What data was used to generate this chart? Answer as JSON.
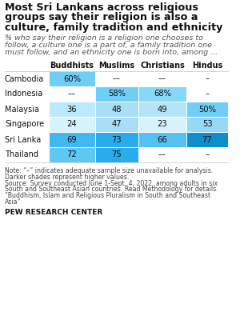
{
  "title_lines": [
    "Most Sri Lankans across religious",
    "groups say their religion is also a",
    "culture, family tradition and ethnicity"
  ],
  "subtitle_lines": [
    "% who say their religion is a religion one chooses to",
    "follow, a culture one is a part of, a family tradition one",
    "must follow, ​and​ an ethnicity one is born into, among ..."
  ],
  "columns": [
    "Buddhists",
    "Muslims",
    "Christians",
    "Hindus"
  ],
  "rows": [
    "Cambodia",
    "Indonesia",
    "Malaysia",
    "Singapore",
    "Sri Lanka",
    "Thailand"
  ],
  "data": [
    [
      "60%",
      "––",
      "––",
      "–"
    ],
    [
      "––",
      "58%",
      "68%",
      "–"
    ],
    [
      "36",
      "48",
      "49",
      "50%"
    ],
    [
      "24",
      "47",
      "23",
      "53"
    ],
    [
      "69",
      "73",
      "66",
      "77"
    ],
    [
      "72",
      "75",
      "––",
      "–"
    ]
  ],
  "cell_colors": [
    [
      "#6ecef5",
      "#ffffff",
      "#ffffff",
      "#ffffff"
    ],
    [
      "#ffffff",
      "#6ecef5",
      "#85d8f8",
      "#ffffff"
    ],
    [
      "#bde9fc",
      "#a8dff7",
      "#b5e4f9",
      "#6ecef5"
    ],
    [
      "#d8f3fd",
      "#a8dff7",
      "#d8f3fd",
      "#96d8f6"
    ],
    [
      "#41b8ef",
      "#2aaceb",
      "#55c0f2",
      "#0d8fcb"
    ],
    [
      "#5ec8f3",
      "#2aaceb",
      "#ffffff",
      "#ffffff"
    ]
  ],
  "note_lines": [
    "Note: “–” indicates adequate sample size unavailable for analysis.",
    "Darker shades represent higher values.",
    "Source: Survey conducted June 1-Sept. 4, 2022, among adults in six",
    "South and Southeast Asian countries. Read Methodology for details.",
    "“Buddhism, Islam and Religious Pluralism in South and Southeast",
    "Asia”"
  ],
  "footer": "PEW RESEARCH CENTER",
  "bg_color": "#ffffff"
}
